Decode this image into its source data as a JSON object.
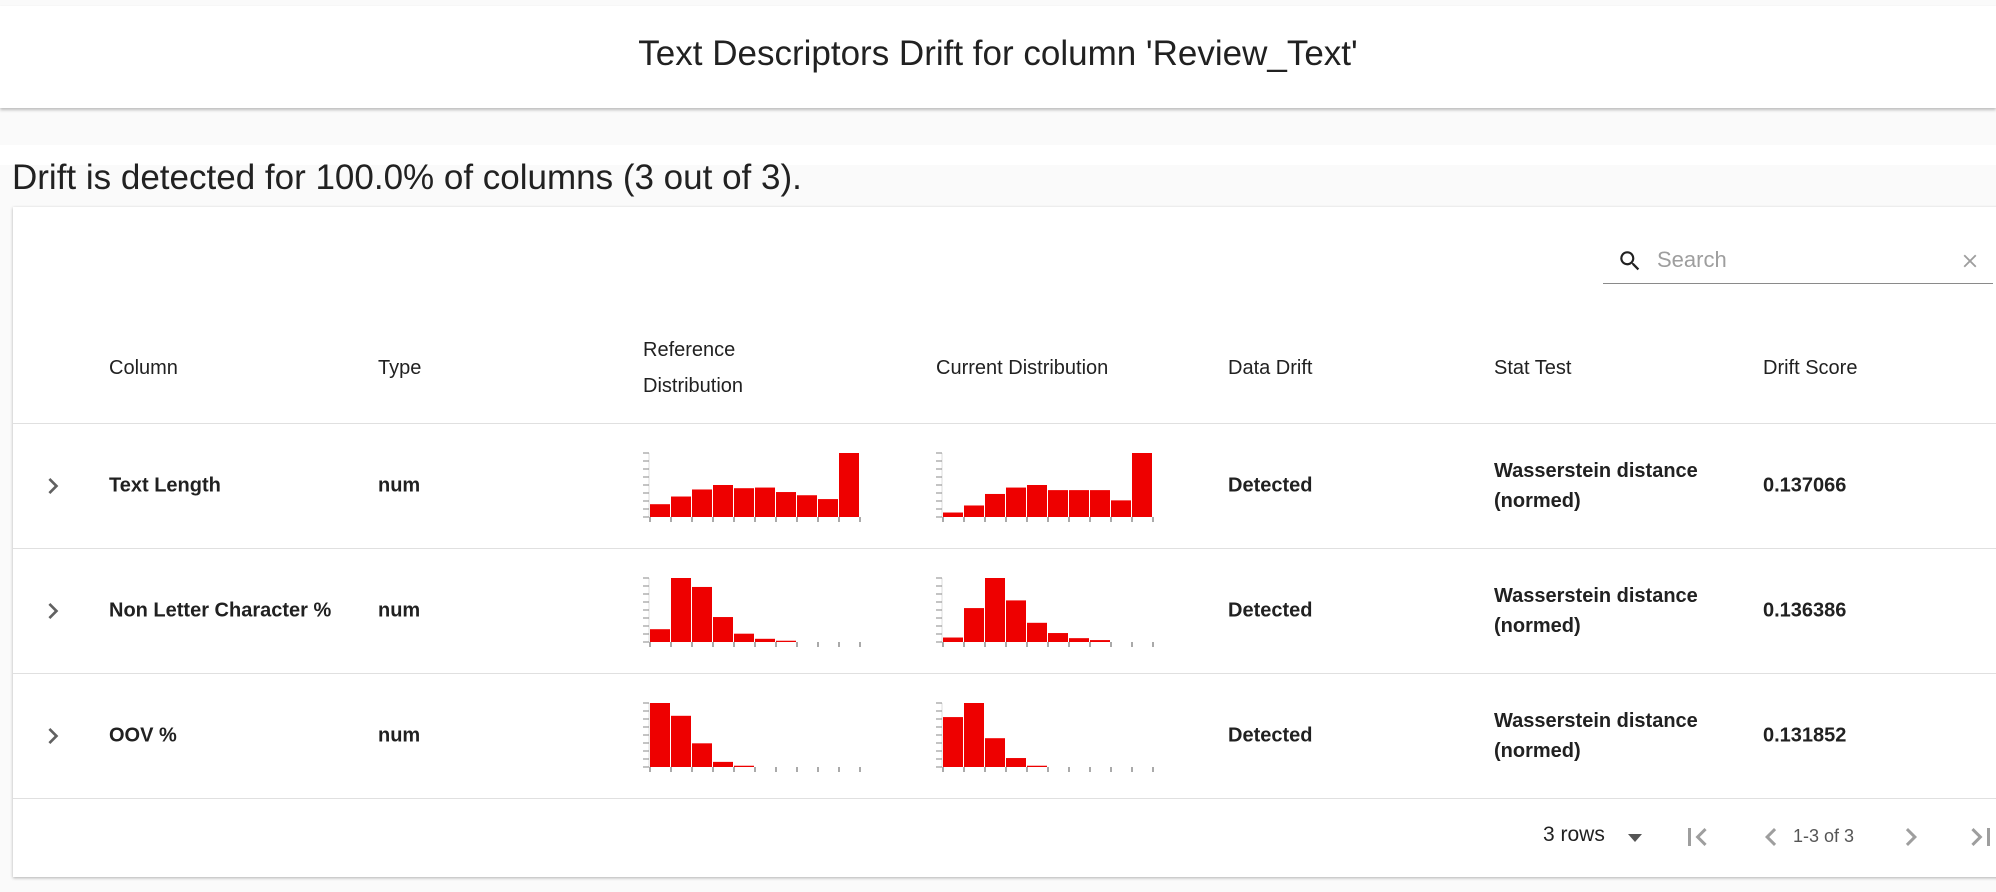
{
  "header": {
    "title": "Text Descriptors Drift for column 'Review_Text'"
  },
  "summary": "Drift is detected for 100.0% of columns (3 out of 3).",
  "search": {
    "placeholder": "Search",
    "icon": "search-icon",
    "clear_icon": "close-icon"
  },
  "columns": {
    "column": "Column",
    "type": "Type",
    "reference_line1": "Reference",
    "reference_line2": "Distribution",
    "current": "Current Distribution",
    "data_drift": "Data Drift",
    "stat_test": "Stat Test",
    "drift_score": "Drift Score"
  },
  "colors": {
    "histogram_bar": "#ee0000",
    "axis": "#555555"
  },
  "rows": [
    {
      "column": "Text Length",
      "type": "num",
      "data_drift": "Detected",
      "stat_line1": "Wasserstein distance",
      "stat_line2": "(normed)",
      "drift_score": "0.137066",
      "reference_hist": [
        0.2,
        0.32,
        0.43,
        0.5,
        0.45,
        0.46,
        0.39,
        0.34,
        0.28,
        1.0
      ],
      "current_hist": [
        0.07,
        0.18,
        0.36,
        0.46,
        0.5,
        0.42,
        0.42,
        0.42,
        0.26,
        1.0
      ]
    },
    {
      "column": "Non Letter Character %",
      "type": "num",
      "data_drift": "Detected",
      "stat_line1": "Wasserstein distance",
      "stat_line2": "(normed)",
      "drift_score": "0.136386",
      "reference_hist": [
        0.2,
        1.0,
        0.86,
        0.39,
        0.13,
        0.05,
        0.02,
        0,
        0,
        0
      ],
      "current_hist": [
        0.07,
        0.53,
        1.0,
        0.65,
        0.3,
        0.14,
        0.06,
        0.03,
        0,
        0
      ]
    },
    {
      "column": "OOV %",
      "type": "num",
      "data_drift": "Detected",
      "stat_line1": "Wasserstein distance",
      "stat_line2": "(normed)",
      "drift_score": "0.131852",
      "reference_hist": [
        1.0,
        0.8,
        0.37,
        0.08,
        0.02,
        0,
        0,
        0,
        0,
        0
      ],
      "current_hist": [
        0.78,
        1.0,
        0.45,
        0.14,
        0.02,
        0,
        0,
        0,
        0,
        0
      ]
    }
  ],
  "pagination": {
    "rows_label": "3 rows",
    "range": "1-3 of 3"
  }
}
